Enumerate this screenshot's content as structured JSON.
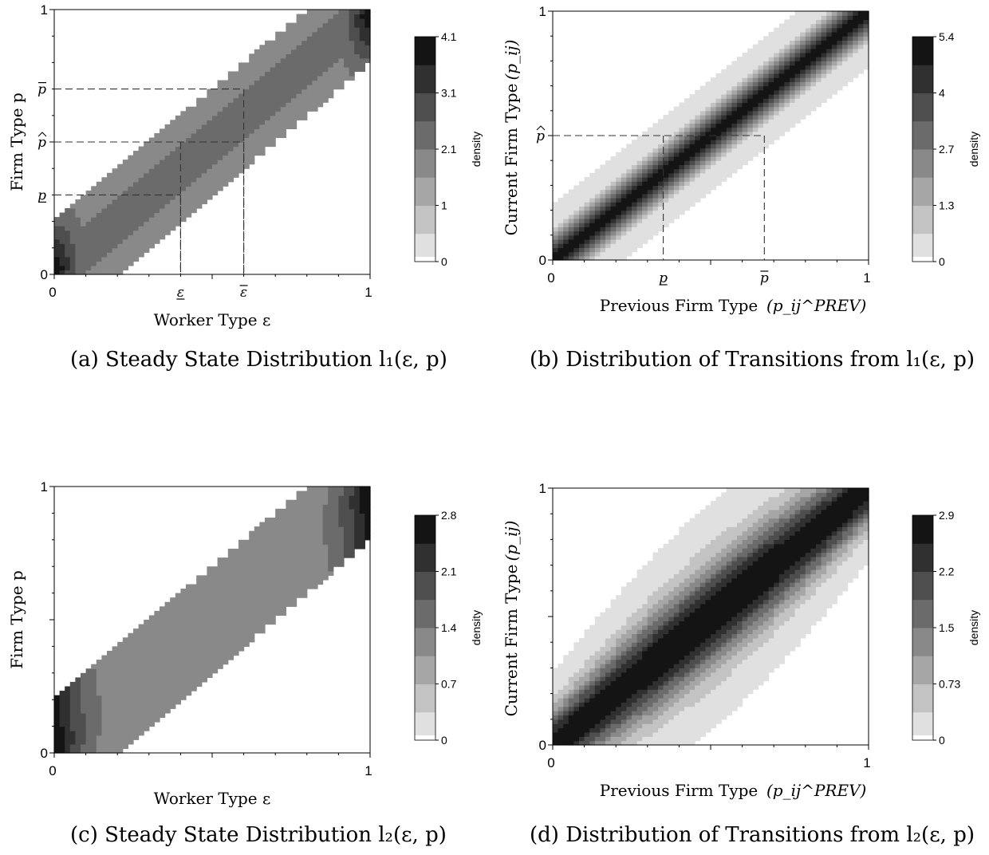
{
  "chart_data": [
    {
      "id": "a",
      "type": "heatmap",
      "caption": "(a) Steady State Distribution l₁(ε, p)",
      "xlabel": "Worker Type ε",
      "ylabel": "Firm Type p",
      "xlim": [
        0,
        1
      ],
      "ylim": [
        0,
        1
      ],
      "x_ticks": [
        "0",
        "1"
      ],
      "y_ticks": [
        "0",
        "1"
      ],
      "x_marks": [
        {
          "label": "ε",
          "style": "under",
          "value": 0.4
        },
        {
          "label": "ε",
          "style": "over",
          "value": 0.6
        }
      ],
      "y_marks": [
        {
          "label": "p",
          "style": "under",
          "value": 0.3
        },
        {
          "label": "p",
          "style": "hat",
          "value": 0.5
        },
        {
          "label": "p",
          "style": "over",
          "value": 0.7
        }
      ],
      "guides": [
        {
          "x": 0.4,
          "y": 0.3
        },
        {
          "x": 0.4,
          "y": 0.5
        },
        {
          "x": 0.6,
          "y": 0.5
        },
        {
          "x": 0.6,
          "y": 0.7
        }
      ],
      "band_halfwidth": 0.2,
      "colorbar": {
        "label": "density",
        "ticks": [
          "0",
          "1",
          "2.1",
          "3.1",
          "4.1"
        ],
        "max": 4.1
      },
      "shape": "steady-1"
    },
    {
      "id": "b",
      "type": "heatmap",
      "caption": "(b) Distribution of Transitions from l₁(ε, p)",
      "xlabel": "Previous Firm Type",
      "xlabel_math": "p_ij^PREV",
      "ylabel": "Current Firm Type",
      "ylabel_math": "p_ij",
      "xlim": [
        0,
        1
      ],
      "ylim": [
        0,
        1
      ],
      "x_ticks": [
        "0",
        "1"
      ],
      "y_ticks": [
        "0",
        "1"
      ],
      "x_marks": [
        {
          "label": "p",
          "style": "under",
          "value": 0.35
        },
        {
          "label": "p",
          "style": "over",
          "value": 0.67
        }
      ],
      "y_marks": [
        {
          "label": "p",
          "style": "hat",
          "value": 0.5
        }
      ],
      "guides": [
        {
          "x": 0.35,
          "y": 0.5
        },
        {
          "x": 0.67,
          "y": 0.5
        }
      ],
      "colorbar": {
        "label": "density",
        "ticks": [
          "0",
          "1.3",
          "2.7",
          "4",
          "5.4"
        ],
        "max": 5.4
      },
      "shape": "transition-1"
    },
    {
      "id": "c",
      "type": "heatmap",
      "caption": "(c) Steady State Distribution l₂(ε, p)",
      "xlabel": "Worker Type ε",
      "ylabel": "Firm Type p",
      "xlim": [
        0,
        1
      ],
      "ylim": [
        0,
        1
      ],
      "x_ticks": [
        "0",
        "1"
      ],
      "y_ticks": [
        "0",
        "1"
      ],
      "x_marks": [],
      "y_marks": [],
      "guides": [],
      "band_halfwidth": 0.2,
      "colorbar": {
        "label": "density",
        "ticks": [
          "0",
          "0.7",
          "1.4",
          "2.1",
          "2.8"
        ],
        "max": 2.8
      },
      "shape": "steady-2"
    },
    {
      "id": "d",
      "type": "heatmap",
      "caption": "(d) Distribution of Transitions from l₂(ε, p)",
      "xlabel": "Previous Firm Type",
      "xlabel_math": "p_ij^PREV",
      "ylabel": "Current Firm Type",
      "ylabel_math": "p_ij",
      "xlim": [
        0,
        1
      ],
      "ylim": [
        0,
        1
      ],
      "x_ticks": [
        "0",
        "1"
      ],
      "y_ticks": [
        "0",
        "1"
      ],
      "x_marks": [],
      "y_marks": [],
      "guides": [],
      "colorbar": {
        "label": "density",
        "ticks": [
          "0",
          "0.73",
          "1.5",
          "2.2",
          "2.9"
        ],
        "max": 2.9
      },
      "shape": "transition-2"
    }
  ],
  "colorscale": [
    "#ffffff",
    "#e0e0e0",
    "#c3c3c3",
    "#a6a6a6",
    "#898989",
    "#6b6b6b",
    "#4e4e4e",
    "#303030",
    "#141414"
  ]
}
